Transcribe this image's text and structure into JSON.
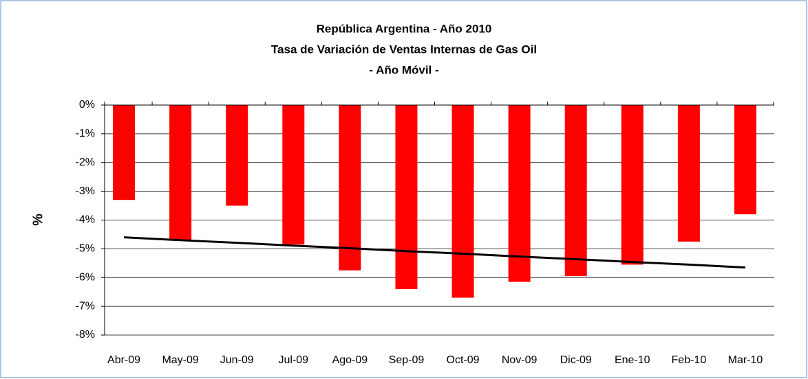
{
  "chart_data": {
    "type": "bar",
    "title": "República Argentina - Año 2010",
    "subtitle": "Tasa de Variación  de Ventas Internas de Gas Oil",
    "subtitle2": "- Año Móvil -",
    "y_label": "%",
    "categories": [
      "Abr-09",
      "May-09",
      "Jun-09",
      "Jul-09",
      "Ago-09",
      "Sep-09",
      "Oct-09",
      "Nov-09",
      "Dic-09",
      "Ene-10",
      "Feb-10",
      "Mar-10"
    ],
    "values": [
      -3.3,
      -4.7,
      -3.5,
      -4.85,
      -5.75,
      -6.4,
      -6.7,
      -6.15,
      -5.95,
      -5.55,
      -4.75,
      -3.8
    ],
    "color": "#ff0000",
    "trendline": {
      "color": "#000000",
      "values": [
        -4.6,
        -4.7,
        -4.79,
        -4.89,
        -4.98,
        -5.08,
        -5.17,
        -5.27,
        -5.36,
        -5.46,
        -5.55,
        -5.65
      ]
    },
    "ylim": [
      -8,
      0
    ],
    "yticks": [
      {
        "value": 0,
        "label": "0%"
      },
      {
        "value": -1,
        "label": "-1%"
      },
      {
        "value": -2,
        "label": "-2%"
      },
      {
        "value": -3,
        "label": "-3%"
      },
      {
        "value": -4,
        "label": "-4%"
      },
      {
        "value": -5,
        "label": "-5%"
      },
      {
        "value": -6,
        "label": "-6%"
      },
      {
        "value": -7,
        "label": "-7%"
      },
      {
        "value": -8,
        "label": "-8%"
      }
    ],
    "grid": true
  }
}
